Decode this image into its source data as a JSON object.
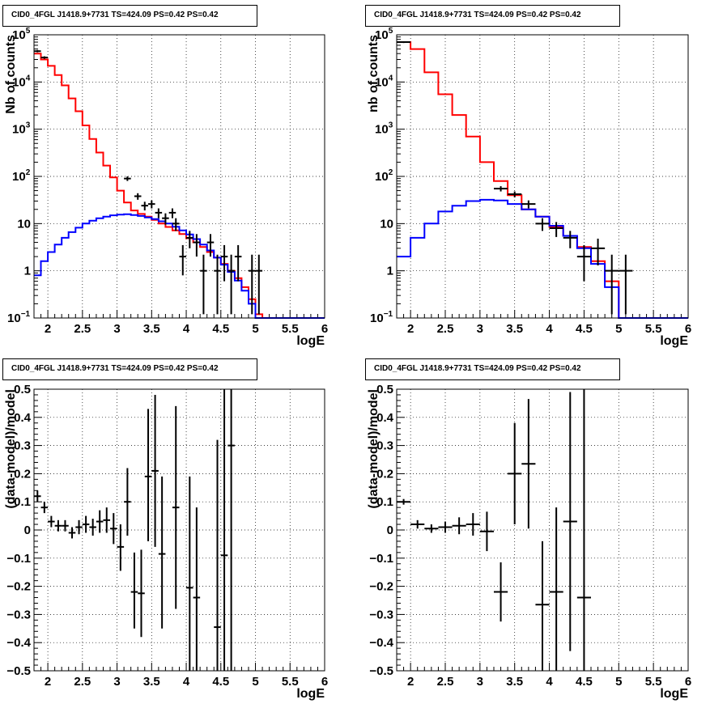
{
  "colors": {
    "data": "#000000",
    "total_model": "#ff0000",
    "source_model": "#0000ff",
    "grid": "#000000"
  },
  "chart_data": [
    {
      "id": "counts-left",
      "type": "step-histogram",
      "title": "CID0_4FGL J1418.9+7731 TS=424.09 PS=0.42 PS=0.42",
      "xlabel": "logE",
      "ylabel": "Nb of counts",
      "xlim": [
        1.8,
        6.0
      ],
      "ylim": [
        0.1,
        100000
      ],
      "log_y": true,
      "grid": true,
      "x_ticks": [
        {
          "v": 2,
          "label": "2"
        },
        {
          "v": 2.5,
          "label": "2.5"
        },
        {
          "v": 3,
          "label": "3"
        },
        {
          "v": 3.5,
          "label": "3.5"
        },
        {
          "v": 4,
          "label": "4"
        },
        {
          "v": 4.5,
          "label": "4.5"
        },
        {
          "v": 5,
          "label": "5"
        },
        {
          "v": 5.5,
          "label": "5.5"
        },
        {
          "v": 6,
          "label": "6"
        }
      ],
      "y_ticks": [
        {
          "v": 0.1,
          "label": "10",
          "sup": "−1"
        },
        {
          "v": 1,
          "label": "1",
          "sup": ""
        },
        {
          "v": 10,
          "label": "10",
          "sup": ""
        },
        {
          "v": 100,
          "label": "10",
          "sup": "2"
        },
        {
          "v": 1000,
          "label": "10",
          "sup": "3"
        },
        {
          "v": 10000,
          "label": "10",
          "sup": "4"
        },
        {
          "v": 100000,
          "label": "10",
          "sup": "5"
        }
      ],
      "bin_edges": [
        1.8,
        1.9,
        2.0,
        2.1,
        2.2,
        2.3,
        2.4,
        2.5,
        2.6,
        2.7,
        2.8,
        2.9,
        3.0,
        3.1,
        3.2,
        3.3,
        3.4,
        3.5,
        3.6,
        3.7,
        3.8,
        3.9,
        4.0,
        4.1,
        4.2,
        4.3,
        4.4,
        4.5,
        4.6,
        4.7,
        4.8,
        4.9,
        5.0,
        5.1,
        5.2,
        5.3,
        5.4,
        5.5,
        5.6,
        5.7,
        5.8,
        5.9,
        6.0
      ],
      "series": [
        {
          "name": "total model",
          "color": "#ff0000",
          "values": [
            40000,
            30000,
            22000,
            14000,
            8500,
            4500,
            2400,
            1200,
            620,
            320,
            170,
            95,
            50,
            28,
            19,
            16,
            14,
            12,
            10,
            8.5,
            7.2,
            6.0,
            4.9,
            4.0,
            3.2,
            2.5,
            1.9,
            1.4,
            1.0,
            0.7,
            0.45,
            0.25,
            0.12,
            0.1,
            0.1,
            0.1,
            0.1,
            0.1,
            0.1,
            0.1,
            0.1,
            0.1
          ]
        },
        {
          "name": "source model",
          "color": "#0000ff",
          "values": [
            0.8,
            1.6,
            2.5,
            3.6,
            5.0,
            6.6,
            8.2,
            10,
            11.5,
            13,
            14,
            15,
            15.5,
            15.8,
            15.2,
            14.5,
            13.5,
            12.5,
            11.2,
            10,
            8.6,
            7.2,
            5.9,
            4.7,
            3.6,
            2.7,
            1.9,
            1.35,
            0.95,
            0.62,
            0.38,
            0.2,
            0.1,
            0.1,
            0.1,
            0.1,
            0.1,
            0.1,
            0.1,
            0.1,
            0.1,
            0.1
          ]
        }
      ],
      "points": [
        {
          "x": 1.85,
          "y": 45000,
          "yerr_lo": 42500,
          "yerr_hi": 47500
        },
        {
          "x": 1.95,
          "y": 33000,
          "yerr_lo": 31000,
          "yerr_hi": 35000
        },
        {
          "x": 3.15,
          "y": 90,
          "yerr_lo": 80,
          "yerr_hi": 100
        },
        {
          "x": 3.3,
          "y": 38,
          "yerr_lo": 32,
          "yerr_hi": 44
        },
        {
          "x": 3.4,
          "y": 24,
          "yerr_lo": 19,
          "yerr_hi": 29
        },
        {
          "x": 3.5,
          "y": 26,
          "yerr_lo": 21,
          "yerr_hi": 31
        },
        {
          "x": 3.6,
          "y": 17,
          "yerr_lo": 13,
          "yerr_hi": 21
        },
        {
          "x": 3.7,
          "y": 13,
          "yerr_lo": 9.5,
          "yerr_hi": 16.5
        },
        {
          "x": 3.8,
          "y": 17,
          "yerr_lo": 13,
          "yerr_hi": 21
        },
        {
          "x": 3.85,
          "y": 10,
          "yerr_lo": 7,
          "yerr_hi": 13
        },
        {
          "x": 3.95,
          "y": 2.0,
          "yerr_lo": 0.8,
          "yerr_hi": 3.5
        },
        {
          "x": 4.05,
          "y": 5,
          "yerr_lo": 3,
          "yerr_hi": 7
        },
        {
          "x": 4.15,
          "y": 4,
          "yerr_lo": 2,
          "yerr_hi": 6
        },
        {
          "x": 4.25,
          "y": 1,
          "yerr_lo": 0.12,
          "yerr_hi": 2.2
        },
        {
          "x": 4.35,
          "y": 4,
          "yerr_lo": 2,
          "yerr_hi": 6
        },
        {
          "x": 4.45,
          "y": 1,
          "yerr_lo": 0.12,
          "yerr_hi": 2.2
        },
        {
          "x": 4.55,
          "y": 2,
          "yerr_lo": 0.6,
          "yerr_hi": 3.5
        },
        {
          "x": 4.65,
          "y": 1,
          "yerr_lo": 0.12,
          "yerr_hi": 2.2
        },
        {
          "x": 4.75,
          "y": 2,
          "yerr_lo": 0.6,
          "yerr_hi": 3.5
        },
        {
          "x": 4.95,
          "y": 1,
          "yerr_lo": 0.12,
          "yerr_hi": 2.2
        },
        {
          "x": 5.05,
          "y": 1,
          "yerr_lo": 0.12,
          "yerr_hi": 2.2
        }
      ]
    },
    {
      "id": "counts-right",
      "type": "step-histogram",
      "title": "CID0_4FGL J1418.9+7731 TS=424.09 PS=0.42 PS=0.42",
      "xlabel": "logE",
      "ylabel": "nb of counts",
      "xlim": [
        1.8,
        6.0
      ],
      "ylim": [
        0.1,
        100000
      ],
      "log_y": true,
      "grid": true,
      "x_ticks": [
        {
          "v": 2,
          "label": "2"
        },
        {
          "v": 2.5,
          "label": "2.5"
        },
        {
          "v": 3,
          "label": "3"
        },
        {
          "v": 3.5,
          "label": "3.5"
        },
        {
          "v": 4,
          "label": "4"
        },
        {
          "v": 4.5,
          "label": "4.5"
        },
        {
          "v": 5,
          "label": "5"
        },
        {
          "v": 5.5,
          "label": "5.5"
        },
        {
          "v": 6,
          "label": "6"
        }
      ],
      "y_ticks": [
        {
          "v": 0.1,
          "label": "10",
          "sup": "−1"
        },
        {
          "v": 1,
          "label": "1",
          "sup": ""
        },
        {
          "v": 10,
          "label": "10",
          "sup": ""
        },
        {
          "v": 100,
          "label": "10",
          "sup": "2"
        },
        {
          "v": 1000,
          "label": "10",
          "sup": "3"
        },
        {
          "v": 10000,
          "label": "10",
          "sup": "4"
        },
        {
          "v": 100000,
          "label": "10",
          "sup": "5"
        }
      ],
      "bin_edges": [
        1.8,
        2.0,
        2.2,
        2.4,
        2.6,
        2.8,
        3.0,
        3.2,
        3.4,
        3.6,
        3.8,
        4.0,
        4.2,
        4.4,
        4.6,
        4.8,
        5.0,
        5.2,
        5.4,
        5.6,
        5.8,
        6.0
      ],
      "series": [
        {
          "name": "total model",
          "color": "#ff0000",
          "values": [
            70000,
            50000,
            16000,
            5500,
            2000,
            700,
            200,
            80,
            40,
            20,
            14,
            8.5,
            5.5,
            3.2,
            1.6,
            0.6,
            0.1,
            0.1,
            0.1,
            0.1,
            0.1
          ]
        },
        {
          "name": "source model",
          "color": "#0000ff",
          "values": [
            2.0,
            5.0,
            10,
            18,
            24,
            30,
            32,
            31,
            26,
            20,
            14,
            9,
            5.5,
            3.0,
            1.4,
            0.45,
            0.1,
            0.1,
            0.1,
            0.1,
            0.1
          ]
        }
      ],
      "points": [
        {
          "x": 1.9,
          "y": 70000,
          "yerr_lo": 67000,
          "yerr_hi": 73000
        },
        {
          "x": 3.3,
          "y": 55,
          "yerr_lo": 48,
          "yerr_hi": 62
        },
        {
          "x": 3.5,
          "y": 42,
          "yerr_lo": 36,
          "yerr_hi": 48
        },
        {
          "x": 3.7,
          "y": 26,
          "yerr_lo": 21,
          "yerr_hi": 31
        },
        {
          "x": 3.9,
          "y": 10,
          "yerr_lo": 7,
          "yerr_hi": 13
        },
        {
          "x": 4.1,
          "y": 8,
          "yerr_lo": 5.2,
          "yerr_hi": 10.8
        },
        {
          "x": 4.3,
          "y": 5,
          "yerr_lo": 3,
          "yerr_hi": 7
        },
        {
          "x": 4.5,
          "y": 2,
          "yerr_lo": 0.6,
          "yerr_hi": 3.5
        },
        {
          "x": 4.7,
          "y": 3,
          "yerr_lo": 1.3,
          "yerr_hi": 4.8
        },
        {
          "x": 4.9,
          "y": 1,
          "yerr_lo": 0.12,
          "yerr_hi": 2.2
        },
        {
          "x": 5.1,
          "y": 1,
          "yerr_lo": 0.12,
          "yerr_hi": 2.2
        }
      ]
    },
    {
      "id": "residual-left",
      "type": "scatter-errorbars",
      "title": "CID0_4FGL J1418.9+7731 TS=424.09 PS=0.42 PS=0.42",
      "xlabel": "logE",
      "ylabel": "(data-model)/model",
      "xlim": [
        1.8,
        6.0
      ],
      "ylim": [
        -0.5,
        0.5
      ],
      "log_y": false,
      "grid": true,
      "x_ticks": [
        {
          "v": 2,
          "label": "2"
        },
        {
          "v": 2.5,
          "label": "2.5"
        },
        {
          "v": 3,
          "label": "3"
        },
        {
          "v": 3.5,
          "label": "3.5"
        },
        {
          "v": 4,
          "label": "4"
        },
        {
          "v": 4.5,
          "label": "4.5"
        },
        {
          "v": 5,
          "label": "5"
        },
        {
          "v": 5.5,
          "label": "5.5"
        },
        {
          "v": 6,
          "label": "6"
        }
      ],
      "y_ticks": [
        {
          "v": -0.5,
          "label": "−0.5",
          "sup": ""
        },
        {
          "v": -0.4,
          "label": "−0.4",
          "sup": ""
        },
        {
          "v": -0.3,
          "label": "−0.3",
          "sup": ""
        },
        {
          "v": -0.2,
          "label": "−0.2",
          "sup": ""
        },
        {
          "v": -0.1,
          "label": "−0.1",
          "sup": ""
        },
        {
          "v": 0,
          "label": "0",
          "sup": ""
        },
        {
          "v": 0.1,
          "label": "0.1",
          "sup": ""
        },
        {
          "v": 0.2,
          "label": "0.2",
          "sup": ""
        },
        {
          "v": 0.3,
          "label": "0.3",
          "sup": ""
        },
        {
          "v": 0.4,
          "label": "0.4",
          "sup": ""
        },
        {
          "v": 0.5,
          "label": "0.5",
          "sup": ""
        }
      ],
      "bin_width": 0.1,
      "points": [
        {
          "x": 1.85,
          "y": 0.12,
          "yerr_lo": 0.1,
          "yerr_hi": 0.14
        },
        {
          "x": 1.95,
          "y": 0.08,
          "yerr_lo": 0.06,
          "yerr_hi": 0.1
        },
        {
          "x": 2.05,
          "y": 0.03,
          "yerr_lo": 0.01,
          "yerr_hi": 0.05
        },
        {
          "x": 2.15,
          "y": 0.015,
          "yerr_lo": -0.005,
          "yerr_hi": 0.035
        },
        {
          "x": 2.25,
          "y": 0.015,
          "yerr_lo": -0.005,
          "yerr_hi": 0.035
        },
        {
          "x": 2.35,
          "y": -0.01,
          "yerr_lo": -0.03,
          "yerr_hi": 0.01
        },
        {
          "x": 2.45,
          "y": 0.01,
          "yerr_lo": -0.015,
          "yerr_hi": 0.035
        },
        {
          "x": 2.55,
          "y": 0.02,
          "yerr_lo": -0.01,
          "yerr_hi": 0.05
        },
        {
          "x": 2.65,
          "y": 0.01,
          "yerr_lo": -0.02,
          "yerr_hi": 0.04
        },
        {
          "x": 2.75,
          "y": 0.03,
          "yerr_lo": -0.01,
          "yerr_hi": 0.07
        },
        {
          "x": 2.85,
          "y": 0.035,
          "yerr_lo": -0.01,
          "yerr_hi": 0.08
        },
        {
          "x": 2.95,
          "y": 0.005,
          "yerr_lo": -0.05,
          "yerr_hi": 0.06
        },
        {
          "x": 3.05,
          "y": -0.06,
          "yerr_lo": -0.145,
          "yerr_hi": 0.02
        },
        {
          "x": 3.15,
          "y": 0.1,
          "yerr_lo": -0.02,
          "yerr_hi": 0.22
        },
        {
          "x": 3.25,
          "y": -0.22,
          "yerr_lo": -0.35,
          "yerr_hi": -0.08
        },
        {
          "x": 3.35,
          "y": -0.225,
          "yerr_lo": -0.38,
          "yerr_hi": -0.07
        },
        {
          "x": 3.45,
          "y": 0.19,
          "yerr_lo": -0.04,
          "yerr_hi": 0.43
        },
        {
          "x": 3.55,
          "y": 0.21,
          "yerr_lo": -0.06,
          "yerr_hi": 0.48
        },
        {
          "x": 3.65,
          "y": -0.085,
          "yerr_lo": -0.35,
          "yerr_hi": 0.19
        },
        {
          "x": 3.85,
          "y": 0.08,
          "yerr_lo": -0.28,
          "yerr_hi": 0.44
        },
        {
          "x": 4.05,
          "y": -0.205,
          "yerr_lo": -0.5,
          "yerr_hi": 0.19
        },
        {
          "x": 4.15,
          "y": -0.24,
          "yerr_lo": -0.5,
          "yerr_hi": 0.08
        },
        {
          "x": 4.45,
          "y": -0.345,
          "yerr_lo": -0.5,
          "yerr_hi": 0.32
        },
        {
          "x": 4.55,
          "y": -0.09,
          "yerr_lo": -0.5,
          "yerr_hi": 0.5
        },
        {
          "x": 4.65,
          "y": 0.3,
          "yerr_lo": -0.5,
          "yerr_hi": 0.5
        }
      ]
    },
    {
      "id": "residual-right",
      "type": "scatter-errorbars",
      "title": "CID0_4FGL J1418.9+7731 TS=424.09 PS=0.42 PS=0.42",
      "xlabel": "logE",
      "ylabel": "(data-model)/model",
      "xlim": [
        1.8,
        6.0
      ],
      "ylim": [
        -0.5,
        0.5
      ],
      "log_y": false,
      "grid": true,
      "x_ticks": [
        {
          "v": 2,
          "label": "2"
        },
        {
          "v": 2.5,
          "label": "2.5"
        },
        {
          "v": 3,
          "label": "3"
        },
        {
          "v": 3.5,
          "label": "3.5"
        },
        {
          "v": 4,
          "label": "4"
        },
        {
          "v": 4.5,
          "label": "4.5"
        },
        {
          "v": 5,
          "label": "5"
        },
        {
          "v": 5.5,
          "label": "5.5"
        },
        {
          "v": 6,
          "label": "6"
        }
      ],
      "y_ticks": [
        {
          "v": -0.5,
          "label": "−0.5",
          "sup": ""
        },
        {
          "v": -0.4,
          "label": "−0.4",
          "sup": ""
        },
        {
          "v": -0.3,
          "label": "−0.3",
          "sup": ""
        },
        {
          "v": -0.2,
          "label": "−0.2",
          "sup": ""
        },
        {
          "v": -0.1,
          "label": "−0.1",
          "sup": ""
        },
        {
          "v": 0,
          "label": "0",
          "sup": ""
        },
        {
          "v": 0.1,
          "label": "0.1",
          "sup": ""
        },
        {
          "v": 0.2,
          "label": "0.2",
          "sup": ""
        },
        {
          "v": 0.3,
          "label": "0.3",
          "sup": ""
        },
        {
          "v": 0.4,
          "label": "0.4",
          "sup": ""
        },
        {
          "v": 0.5,
          "label": "0.5",
          "sup": ""
        }
      ],
      "bin_width": 0.2,
      "points": [
        {
          "x": 1.9,
          "y": 0.1,
          "yerr_lo": 0.09,
          "yerr_hi": 0.11
        },
        {
          "x": 2.1,
          "y": 0.02,
          "yerr_lo": 0.005,
          "yerr_hi": 0.035
        },
        {
          "x": 2.3,
          "y": 0.005,
          "yerr_lo": -0.01,
          "yerr_hi": 0.02
        },
        {
          "x": 2.5,
          "y": 0.01,
          "yerr_lo": -0.01,
          "yerr_hi": 0.03
        },
        {
          "x": 2.7,
          "y": 0.015,
          "yerr_lo": -0.015,
          "yerr_hi": 0.045
        },
        {
          "x": 2.9,
          "y": 0.02,
          "yerr_lo": -0.02,
          "yerr_hi": 0.06
        },
        {
          "x": 3.1,
          "y": -0.005,
          "yerr_lo": -0.075,
          "yerr_hi": 0.065
        },
        {
          "x": 3.3,
          "y": -0.22,
          "yerr_lo": -0.325,
          "yerr_hi": -0.115
        },
        {
          "x": 3.5,
          "y": 0.2,
          "yerr_lo": 0.02,
          "yerr_hi": 0.38
        },
        {
          "x": 3.7,
          "y": 0.235,
          "yerr_lo": 0.005,
          "yerr_hi": 0.465
        },
        {
          "x": 3.9,
          "y": -0.265,
          "yerr_lo": -0.5,
          "yerr_hi": -0.04
        },
        {
          "x": 4.1,
          "y": -0.22,
          "yerr_lo": -0.5,
          "yerr_hi": 0.08
        },
        {
          "x": 4.3,
          "y": 0.03,
          "yerr_lo": -0.43,
          "yerr_hi": 0.49
        },
        {
          "x": 4.5,
          "y": -0.24,
          "yerr_lo": -0.5,
          "yerr_hi": 0.5
        }
      ]
    }
  ]
}
